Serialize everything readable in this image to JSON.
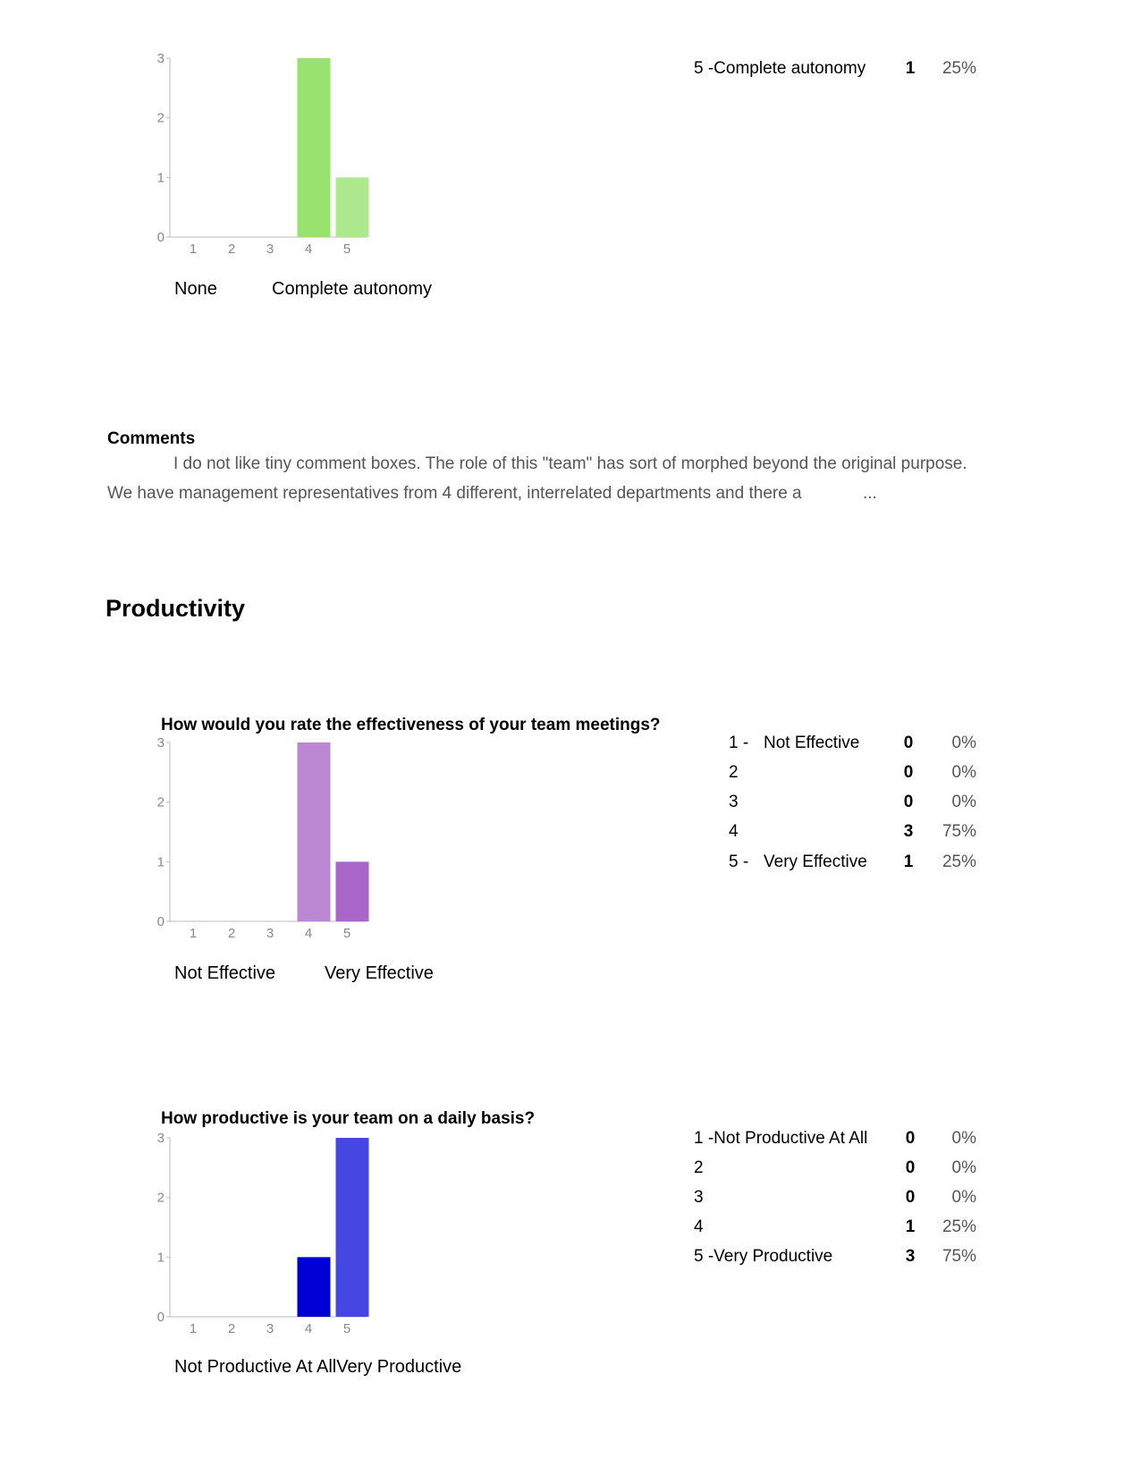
{
  "chart_data": [
    {
      "type": "bar",
      "categories": [
        "1",
        "2",
        "3",
        "4",
        "5"
      ],
      "values": [
        0,
        0,
        0,
        3,
        1
      ],
      "ylim": [
        0,
        3
      ],
      "yticks": [
        "0",
        "1",
        "2",
        "3"
      ],
      "colors": [
        "#99e26f",
        "#99e26f",
        "#99e26f",
        "#99e26f",
        "#aee88e"
      ],
      "scale_labels": [
        "None",
        "Complete autonomy"
      ],
      "grid": false
    },
    {
      "type": "bar",
      "title": "How would you rate the effectiveness of your team meetings?",
      "categories": [
        "1",
        "2",
        "3",
        "4",
        "5"
      ],
      "values": [
        0,
        0,
        0,
        3,
        1
      ],
      "ylim": [
        0,
        3
      ],
      "yticks": [
        "0",
        "1",
        "2",
        "3"
      ],
      "colors": [
        "#bc87d2",
        "#bc87d2",
        "#bc87d2",
        "#bc87d2",
        "#a866c8"
      ],
      "scale_labels": [
        "Not Effective",
        "Very Effective"
      ],
      "grid": false
    },
    {
      "type": "bar",
      "title": "How productive is your team on a daily basis?",
      "categories": [
        "1",
        "2",
        "3",
        "4",
        "5"
      ],
      "values": [
        0,
        0,
        0,
        1,
        3
      ],
      "ylim": [
        0,
        3
      ],
      "yticks": [
        "0",
        "1",
        "2",
        "3"
      ],
      "colors": [
        "#0000d6",
        "#0000d6",
        "#0000d6",
        "#0000d6",
        "#4646e2"
      ],
      "scale_labels": [
        "Not Productive At AllVery Productive"
      ],
      "grid": false
    }
  ],
  "summary1": [
    {
      "label": "5 -Complete autonomy",
      "count": "1",
      "percent": "25%"
    }
  ],
  "comments": {
    "heading": "Comments",
    "line1": "I do not like tiny comment boxes. The role of this \"team\" has sort of morphed beyond the original purpose.",
    "line2": "We have management representatives from 4 different, interrelated departments and there a",
    "ellipsis": "..."
  },
  "section_title": "Productivity",
  "summary2": [
    {
      "num": "1 -",
      "text": "Not Effective",
      "count": "0",
      "percent": "0%"
    },
    {
      "num": "2",
      "text": "",
      "count": "0",
      "percent": "0%"
    },
    {
      "num": "3",
      "text": "",
      "count": "0",
      "percent": "0%"
    },
    {
      "num": "4",
      "text": "",
      "count": "3",
      "percent": "75%"
    },
    {
      "num": "5 -",
      "text": "Very Effective",
      "count": "1",
      "percent": "25%"
    }
  ],
  "summary3": [
    {
      "label": "1 -Not Productive At All",
      "count": "0",
      "percent": "0%"
    },
    {
      "label": "2",
      "count": "0",
      "percent": "0%"
    },
    {
      "label": "3",
      "count": "0",
      "percent": "0%"
    },
    {
      "label": "4",
      "count": "1",
      "percent": "25%"
    },
    {
      "label": "5 -Very Productive",
      "count": "3",
      "percent": "75%"
    }
  ]
}
